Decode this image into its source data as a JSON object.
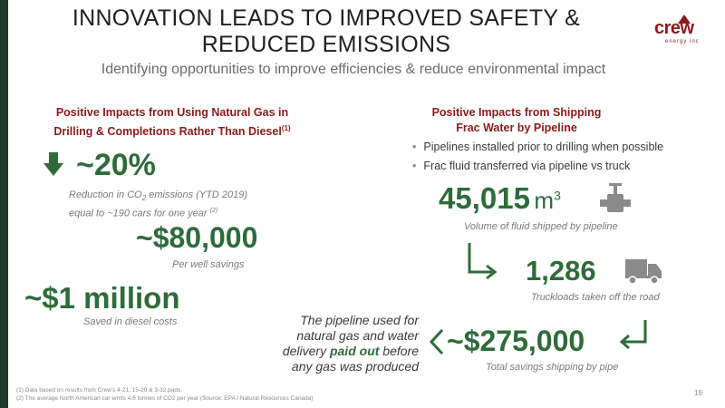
{
  "title_line1": "INNOVATION LEADS TO IMPROVED SAFETY &",
  "title_line2": "REDUCED EMISSIONS",
  "subtitle": "Identifying opportunities to improve efficiencies & reduce environmental impact",
  "logo": {
    "name": "crew",
    "sub": "energy inc"
  },
  "left": {
    "header_line1": "Positive Impacts from Using Natural Gas in",
    "header_line2": "Drilling & Completions Rather Than Diesel",
    "header_sup": "(1)",
    "stat1": "~20%",
    "stat1_desc_a": "Reduction in CO",
    "stat1_desc_sub": "2",
    "stat1_desc_b": " emissions (YTD 2019)",
    "stat1_desc2": "equal to ~190 cars for one year",
    "stat1_desc2_sup": "(2)",
    "stat2": "~$80,000",
    "stat2_desc": "Per well savings",
    "stat3": "~$1 million",
    "stat3_desc": "Saved in diesel costs"
  },
  "right": {
    "header_line1": "Positive Impacts from Shipping",
    "header_line2": "Frac Water by Pipeline",
    "bullets": [
      "Pipelines installed prior to drilling when possible",
      "Frac fluid transferred via pipeline vs truck"
    ],
    "stat1_value": "45,015",
    "stat1_unit": "m",
    "stat1_unit_sup": "3",
    "stat1_desc": "Volume of fluid shipped by pipeline",
    "stat2_value": "1,286",
    "stat2_desc": "Truckloads taken off the road",
    "stat3_value": "~$275,000",
    "stat3_desc": "Total savings shipping by pipe",
    "note_line1": "The pipeline used for",
    "note_line2": "natural gas and water",
    "note_line3_a": "delivery ",
    "note_line3_b": "paid out",
    "note_line3_c": " before",
    "note_line4": "any gas was produced"
  },
  "footnotes": [
    "(1)   Data based on results from Crew’s 4-21, 15-20 & 3-32 pads.",
    "(2)   The average North American car emits 4.6 tonnes of CO2 per year (Source: EPA / Natural Resources Canada)"
  ],
  "page_number": "19",
  "colors": {
    "accent_red": "#8b1a1a",
    "accent_green": "#2e6b3a",
    "sidebar": "#1e3a2f"
  },
  "icons": [
    "down-arrow-icon",
    "valve-icon",
    "truck-icon",
    "turn-arrow-icon",
    "return-arrow-icon",
    "left-chevron-icon"
  ]
}
